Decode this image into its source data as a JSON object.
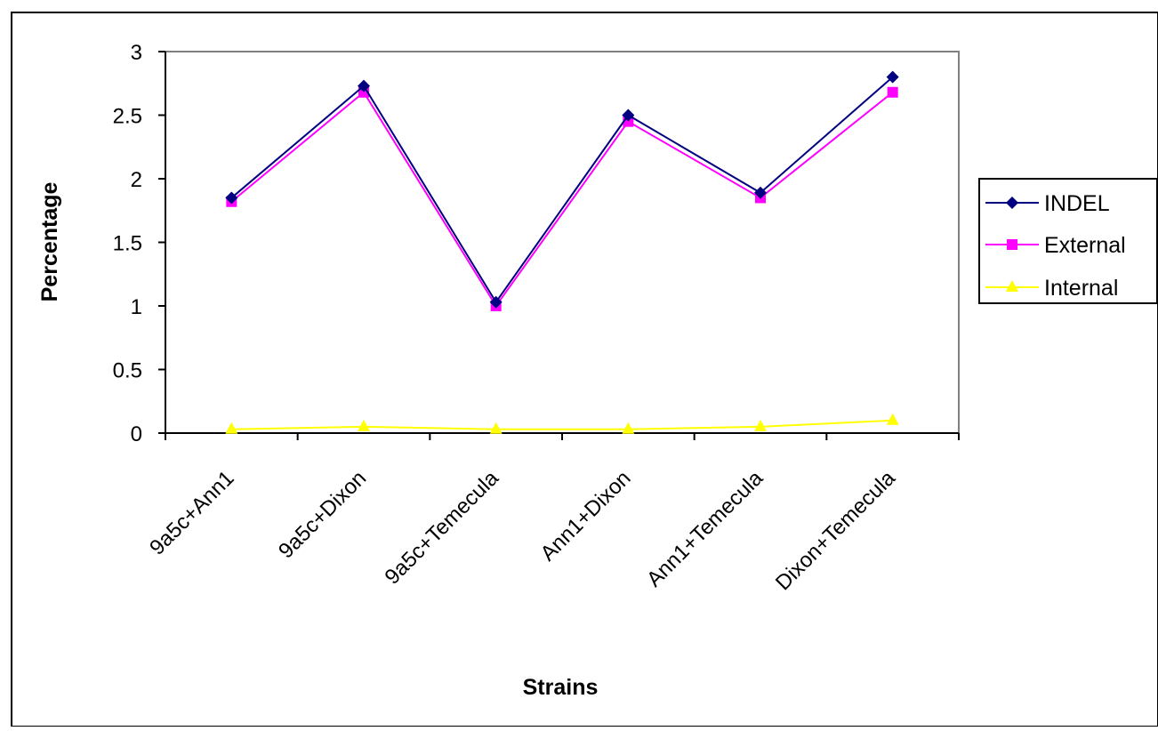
{
  "chart_data": {
    "type": "line",
    "categories": [
      "9a5c+Ann1",
      "9a5c+Dixon",
      "9a5c+Temecula",
      "Ann1+Dixon",
      "Ann1+Temecula",
      "Dixon+Temecula"
    ],
    "series": [
      {
        "name": "INDEL",
        "values": [
          1.85,
          2.73,
          1.03,
          2.5,
          1.89,
          2.8
        ],
        "color": "#000080",
        "marker": "diamond"
      },
      {
        "name": "External",
        "values": [
          1.82,
          2.68,
          1.0,
          2.45,
          1.85,
          2.68
        ],
        "color": "#ff00ff",
        "marker": "square"
      },
      {
        "name": "Internal",
        "values": [
          0.03,
          0.05,
          0.03,
          0.03,
          0.05,
          0.1
        ],
        "color": "#ffff00",
        "marker": "triangle"
      }
    ],
    "xlabel": "Strains",
    "ylabel": "Percentage",
    "ylim": [
      0,
      3
    ],
    "yticks": [
      "0",
      "0.5",
      "1",
      "1.5",
      "2",
      "2.5",
      "3"
    ],
    "grid": false,
    "legend_position": "right"
  }
}
